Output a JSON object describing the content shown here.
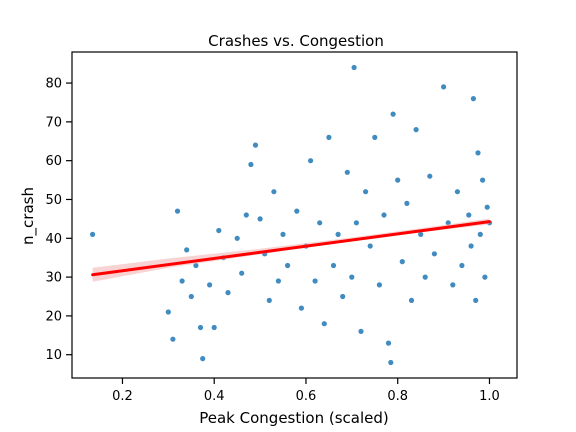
{
  "chart_data": {
    "type": "scatter",
    "title": "Crashes vs. Congestion",
    "xlabel": "Peak Congestion (scaled)",
    "ylabel": "n_crash",
    "xlim": [
      0.09,
      1.06
    ],
    "ylim": [
      4,
      88
    ],
    "xticks": [
      "0.2",
      "0.4",
      "0.6",
      "0.8",
      "1.0"
    ],
    "yticks": [
      "10",
      "20",
      "30",
      "40",
      "50",
      "60",
      "70",
      "80"
    ],
    "grid": false,
    "legend": "none",
    "colors": {
      "points": "#1f77b4",
      "fit_line": "#ff0000",
      "confidence_band": "#f4b6b6"
    },
    "regression": {
      "x": [
        0.135,
        1.0
      ],
      "y": [
        30.6,
        44.3
      ]
    },
    "confidence_band": {
      "x": [
        0.135,
        0.3,
        0.5,
        0.7,
        0.85,
        1.0
      ],
      "lower": [
        28.8,
        32.4,
        35.9,
        39.2,
        41.5,
        43.6
      ],
      "upper": [
        32.4,
        34.8,
        37.3,
        40.2,
        42.6,
        45.1
      ]
    },
    "series": [
      {
        "points": [
          [
            0.135,
            41
          ],
          [
            0.3,
            21
          ],
          [
            0.31,
            14
          ],
          [
            0.32,
            47
          ],
          [
            0.33,
            29
          ],
          [
            0.34,
            37
          ],
          [
            0.35,
            25
          ],
          [
            0.36,
            33
          ],
          [
            0.37,
            17
          ],
          [
            0.375,
            9
          ],
          [
            0.39,
            28
          ],
          [
            0.4,
            17
          ],
          [
            0.41,
            42
          ],
          [
            0.42,
            35
          ],
          [
            0.43,
            26
          ],
          [
            0.45,
            40
          ],
          [
            0.46,
            31
          ],
          [
            0.47,
            46
          ],
          [
            0.48,
            59
          ],
          [
            0.49,
            64
          ],
          [
            0.5,
            45
          ],
          [
            0.51,
            36
          ],
          [
            0.52,
            24
          ],
          [
            0.53,
            52
          ],
          [
            0.54,
            29
          ],
          [
            0.55,
            41
          ],
          [
            0.56,
            33
          ],
          [
            0.58,
            47
          ],
          [
            0.59,
            22
          ],
          [
            0.6,
            38
          ],
          [
            0.61,
            60
          ],
          [
            0.62,
            29
          ],
          [
            0.63,
            44
          ],
          [
            0.64,
            18
          ],
          [
            0.65,
            66
          ],
          [
            0.66,
            33
          ],
          [
            0.67,
            41
          ],
          [
            0.68,
            25
          ],
          [
            0.69,
            57
          ],
          [
            0.7,
            30
          ],
          [
            0.705,
            84
          ],
          [
            0.71,
            44
          ],
          [
            0.72,
            16
          ],
          [
            0.73,
            52
          ],
          [
            0.74,
            38
          ],
          [
            0.75,
            66
          ],
          [
            0.76,
            28
          ],
          [
            0.77,
            46
          ],
          [
            0.78,
            13
          ],
          [
            0.785,
            8
          ],
          [
            0.79,
            72
          ],
          [
            0.8,
            55
          ],
          [
            0.81,
            34
          ],
          [
            0.82,
            49
          ],
          [
            0.83,
            24
          ],
          [
            0.84,
            68
          ],
          [
            0.85,
            41
          ],
          [
            0.86,
            30
          ],
          [
            0.87,
            56
          ],
          [
            0.88,
            36
          ],
          [
            0.9,
            79
          ],
          [
            0.91,
            44
          ],
          [
            0.92,
            28
          ],
          [
            0.93,
            52
          ],
          [
            0.94,
            33
          ],
          [
            0.955,
            46
          ],
          [
            0.96,
            38
          ],
          [
            0.965,
            76
          ],
          [
            0.97,
            24
          ],
          [
            0.975,
            62
          ],
          [
            0.98,
            41
          ],
          [
            0.985,
            55
          ],
          [
            0.99,
            30
          ],
          [
            0.995,
            48
          ],
          [
            1.0,
            44
          ]
        ]
      }
    ]
  }
}
